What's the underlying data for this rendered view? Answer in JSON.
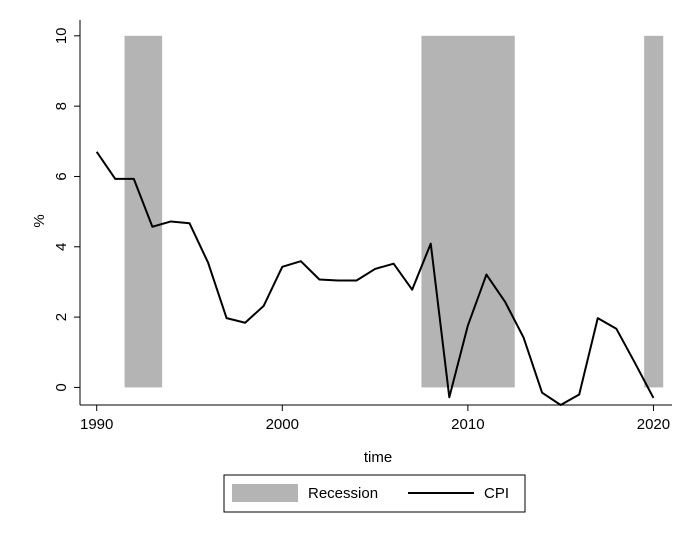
{
  "chart_data": {
    "type": "line",
    "x_label": "time",
    "y_label": "%",
    "xlim": [
      1989.1,
      2021
    ],
    "xticks": [
      1990,
      2000,
      2010,
      2020
    ],
    "ylim": [
      -0.5,
      10.45
    ],
    "yticks": [
      0,
      2,
      4,
      6,
      8,
      10
    ],
    "grid": false,
    "legend": "bottom",
    "series": [
      {
        "name": "Recession",
        "type": "bar",
        "color": "#b4b4b4",
        "bar_width": 1,
        "x": [
          1992,
          1993,
          2008,
          2009,
          2010,
          2011,
          2012,
          2020
        ],
        "values": [
          10,
          10,
          10,
          10,
          10,
          10,
          10,
          10
        ]
      },
      {
        "name": "CPI",
        "type": "line",
        "color": "#000000",
        "x": [
          1990,
          1991,
          1992,
          1993,
          1994,
          1995,
          1996,
          1997,
          1998,
          1999,
          2000,
          2001,
          2002,
          2003,
          2004,
          2005,
          2006,
          2007,
          2008,
          2009,
          2010,
          2011,
          2012,
          2013,
          2014,
          2015,
          2016,
          2017,
          2018,
          2019,
          2020
        ],
        "values": [
          6.7,
          5.93,
          5.93,
          4.57,
          4.72,
          4.67,
          3.55,
          1.97,
          1.84,
          2.32,
          3.43,
          3.59,
          3.07,
          3.04,
          3.04,
          3.37,
          3.52,
          2.78,
          4.09,
          -0.28,
          1.76,
          3.21,
          2.44,
          1.42,
          -0.15,
          -0.5,
          -0.2,
          1.97,
          1.67,
          0.7,
          -0.3
        ]
      }
    ]
  }
}
